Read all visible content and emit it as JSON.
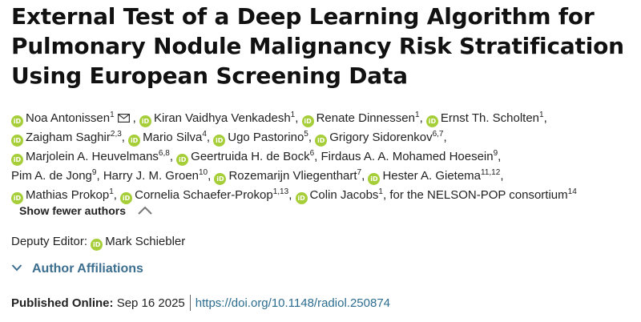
{
  "article": {
    "title_lines": [
      "External Test of a Deep Learning Algorithm for",
      "Pulmonary Nodule Malignancy Risk Stratification",
      "Using European Screening Data"
    ]
  },
  "authors": {
    "line1": [
      {
        "name": "Noa Antonissen",
        "sup": "1"
      },
      {
        "name": "Kiran Vaidhya Venkadesh",
        "sup": "1"
      },
      {
        "name": "Renate Dinnessen",
        "sup": "1"
      },
      {
        "name": "Ernst Th. Scholten",
        "sup": "1"
      }
    ],
    "line2": [
      {
        "name": "Zaigham Saghir",
        "sup": "2,3"
      },
      {
        "name": "Mario Silva",
        "sup": "4"
      },
      {
        "name": "Ugo Pastorino",
        "sup": "5"
      },
      {
        "name": "Grigory Sidorenkov",
        "sup": "6,7"
      }
    ],
    "line3": [
      {
        "name": "Marjolein A. Heuvelmans",
        "sup": "6,8"
      },
      {
        "name": "Geertruida H. de Bock",
        "sup": "6"
      },
      {
        "name": "Firdaus A. A. Mohamed Hoesein",
        "sup": "9"
      }
    ],
    "line4": [
      {
        "name": "Pim A. de Jong",
        "sup": "9"
      },
      {
        "name": "Harry J. M. Groen",
        "sup": "10"
      },
      {
        "name": "Rozemarijn Vliegenthart",
        "sup": "7"
      },
      {
        "name": "Hester A. Gietema",
        "sup": "11,12"
      }
    ],
    "line5": [
      {
        "name": "Mathias Prokop",
        "sup": "1"
      },
      {
        "name": "Cornelia Schaefer-Prokop",
        "sup": "1,13"
      },
      {
        "name": "Colin Jacobs",
        "sup": "1"
      },
      {
        "name": "for the NELSON-POP consortium",
        "sup": "14"
      }
    ],
    "show_fewer_label": "Show fewer authors"
  },
  "editor": {
    "label": "Deputy Editor:",
    "name": "Mark Schiebler"
  },
  "affiliations_label": "Author Affiliations",
  "published": {
    "label": "Published Online:",
    "date": "Sep 16 2025",
    "doi": "https://doi.org/10.1148/radiol.250874"
  },
  "colors": {
    "orcid": "#a6ce39",
    "link": "#2c6c8f",
    "affiliation": "#3c6e8f"
  }
}
